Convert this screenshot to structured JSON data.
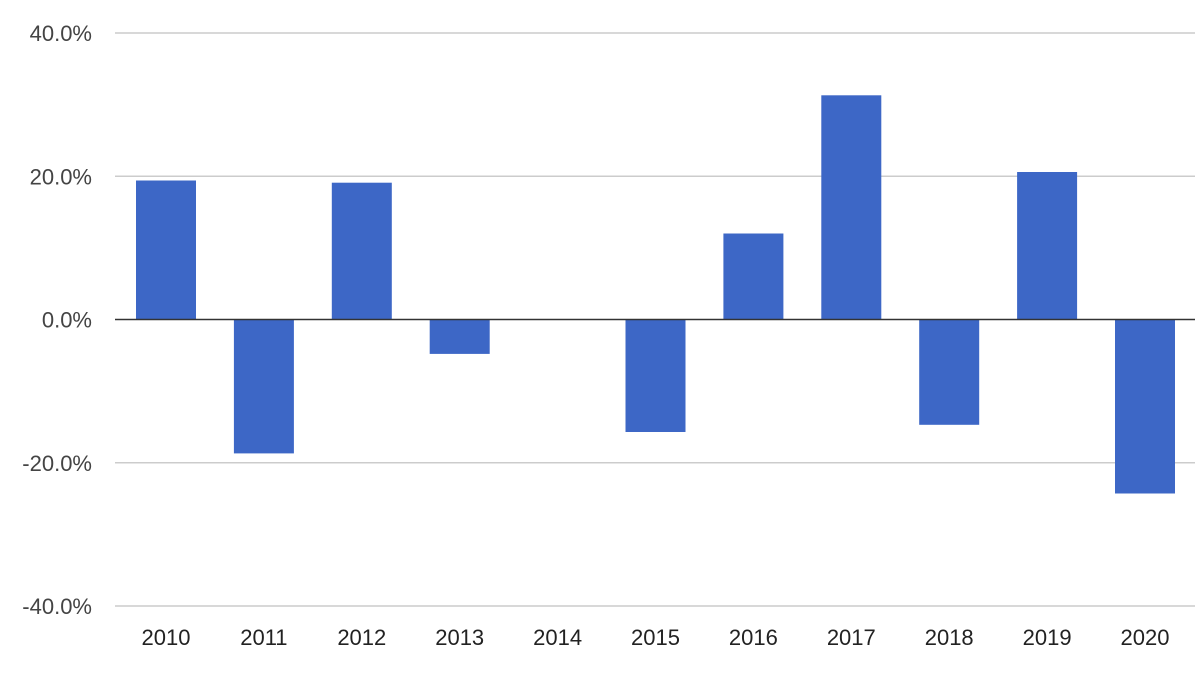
{
  "chart_data": {
    "type": "bar",
    "categories": [
      "2010",
      "2011",
      "2012",
      "2013",
      "2014",
      "2015",
      "2016",
      "2017",
      "2018",
      "2019",
      "2020"
    ],
    "values": [
      19.4,
      -18.7,
      19.1,
      -4.8,
      0.0,
      -15.7,
      12.0,
      31.3,
      -14.7,
      20.6,
      -24.3
    ],
    "ylim": [
      -40,
      40
    ],
    "yticks": [
      40,
      20,
      0,
      -20,
      -40
    ],
    "ytick_labels": [
      "40.0%",
      "20.0%",
      "0.0%",
      "-20.0%",
      "-40.0%"
    ],
    "grid": true,
    "bar_color": "#3d67c6",
    "grid_color": "#cccccc",
    "zero_line_color": "#333333"
  }
}
